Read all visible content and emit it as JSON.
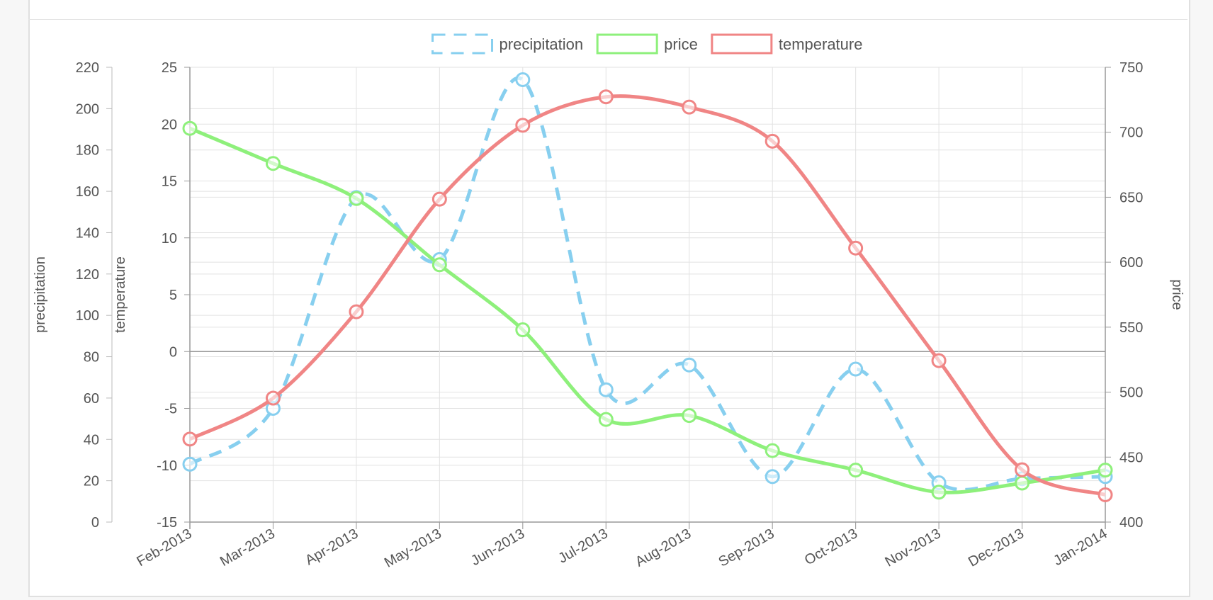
{
  "chart_data": {
    "type": "line",
    "categories": [
      "Feb-2013",
      "Mar-2013",
      "Apr-2013",
      "May-2013",
      "Jun-2013",
      "Jul-2013",
      "Aug-2013",
      "Sep-2013",
      "Oct-2013",
      "Nov-2013",
      "Dec-2013",
      "Jan-2014"
    ],
    "series": [
      {
        "name": "precipitation",
        "axis": "precipitation",
        "color": "#87cfef",
        "dash": true,
        "values": [
          28,
          55,
          157,
          127,
          214,
          64,
          76,
          22,
          74,
          19,
          21,
          22
        ]
      },
      {
        "name": "price",
        "axis": "price",
        "color": "#8ef07b",
        "dash": false,
        "values": [
          703,
          676,
          649,
          598,
          548,
          479,
          482,
          455,
          440,
          423,
          430,
          440
        ]
      },
      {
        "name": "temperature",
        "axis": "temperature",
        "color": "#f08585",
        "dash": false,
        "values": [
          -7.7,
          -4.1,
          3.5,
          13.4,
          19.9,
          22.4,
          21.5,
          18.5,
          9.1,
          -0.8,
          -10.4,
          -12.6
        ]
      }
    ],
    "axes": {
      "precipitation": {
        "label": "precipitation",
        "min": 0,
        "max": 220,
        "step": 20,
        "ticks": [
          "0",
          "20",
          "40",
          "60",
          "80",
          "100",
          "120",
          "140",
          "160",
          "180",
          "200",
          "220"
        ]
      },
      "temperature": {
        "label": "temperature",
        "min": -15,
        "max": 25,
        "step": 5,
        "ticks": [
          "-15",
          "-10",
          "-5",
          "0",
          "5",
          "10",
          "15",
          "20",
          "25"
        ]
      },
      "price": {
        "label": "price",
        "min": 400,
        "max": 750,
        "step": 50,
        "ticks": [
          "400",
          "450",
          "500",
          "550",
          "600",
          "650",
          "700",
          "750"
        ]
      }
    },
    "legend": {
      "position": "top",
      "items": [
        "precipitation",
        "price",
        "temperature"
      ]
    },
    "grid": true
  }
}
